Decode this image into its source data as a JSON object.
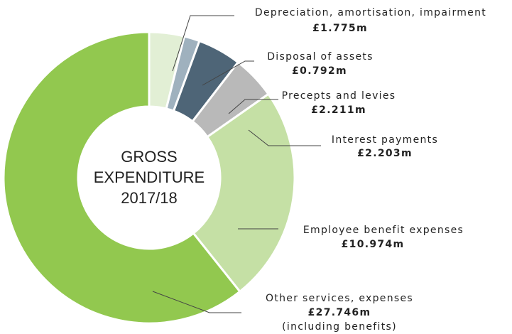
{
  "chart_data": {
    "type": "donut",
    "center_label": [
      "GROSS",
      "EXPENDITURE",
      "2017/18"
    ],
    "categories": [
      "Depreciation, amortisation, impairment",
      "Disposal of assets",
      "Precepts and levies",
      "Interest payments",
      "Employee benefit expenses",
      "Other services, expenses"
    ],
    "values": [
      1.775,
      0.792,
      2.211,
      2.203,
      10.974,
      27.746
    ],
    "value_labels": [
      "£1.775m",
      "£0.792m",
      "£2.211m",
      "£2.203m",
      "£10.974m",
      "£27.746m"
    ],
    "colors": [
      "#e2efd5",
      "#9fb1be",
      "#4e6577",
      "#b9b9b9",
      "#c5e0a5",
      "#92c84f"
    ],
    "annotation": "(including benefits)"
  }
}
